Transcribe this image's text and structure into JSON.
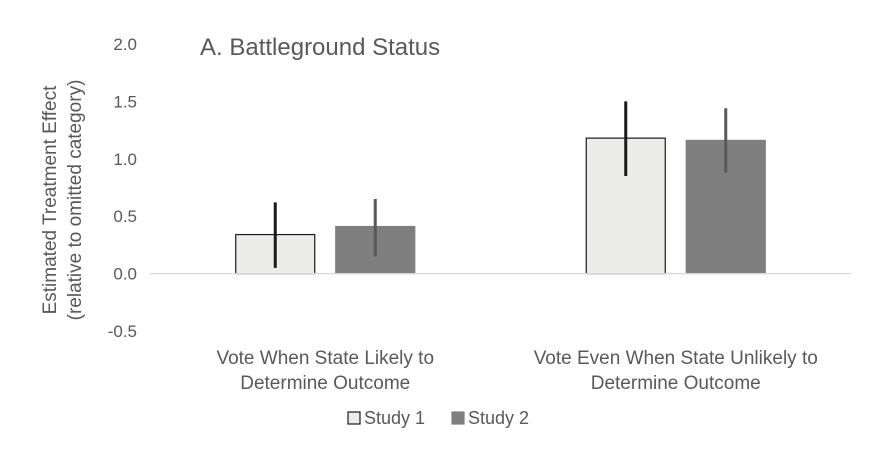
{
  "chart_data": {
    "type": "bar",
    "title": "A. Battleground Status",
    "ylabel_line1": "Estimated Treatment Effect",
    "ylabel_line2": "(relative to omitted category)",
    "ylim": [
      -0.5,
      2.0
    ],
    "yticks": [
      -0.5,
      0.0,
      0.5,
      1.0,
      1.5,
      2.0
    ],
    "ytick_labels": [
      "-0.5",
      "0.0",
      "0.5",
      "1.0",
      "1.5",
      "2.0"
    ],
    "grid": false,
    "legend_position": "bottom-center",
    "categories": [
      {
        "line1": "Vote When State Likely to",
        "line2": "Determine Outcome"
      },
      {
        "line1": "Vote Even When State Unlikely to",
        "line2": "Determine Outcome"
      }
    ],
    "series": [
      {
        "name": "Study 1",
        "values": [
          0.34,
          1.18
        ],
        "ci_low": [
          0.05,
          0.85
        ],
        "ci_high": [
          0.62,
          1.5
        ],
        "fill": "#ecedea",
        "stroke": "#1a1a1a",
        "errorbar_color": "#1a1a1a"
      },
      {
        "name": "Study 2",
        "values": [
          0.41,
          1.16
        ],
        "ci_low": [
          0.15,
          0.88
        ],
        "ci_high": [
          0.65,
          1.44
        ],
        "fill": "#7f7f7f",
        "stroke": "#7f7f7f",
        "errorbar_color": "#595959"
      }
    ]
  }
}
